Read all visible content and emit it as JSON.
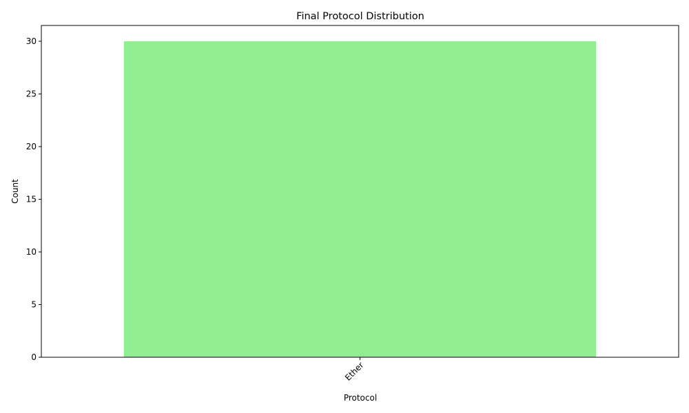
{
  "chart_data": {
    "type": "bar",
    "title": "Final Protocol Distribution",
    "xlabel": "Protocol",
    "ylabel": "Count",
    "categories": [
      "Ether"
    ],
    "values": [
      30
    ],
    "ylim": [
      0,
      31.5
    ],
    "yticks": [
      0,
      5,
      10,
      15,
      20,
      25,
      30
    ],
    "xtick_rotation": 45,
    "bar_color": "#90ee90",
    "grid": false,
    "legend": "none"
  }
}
